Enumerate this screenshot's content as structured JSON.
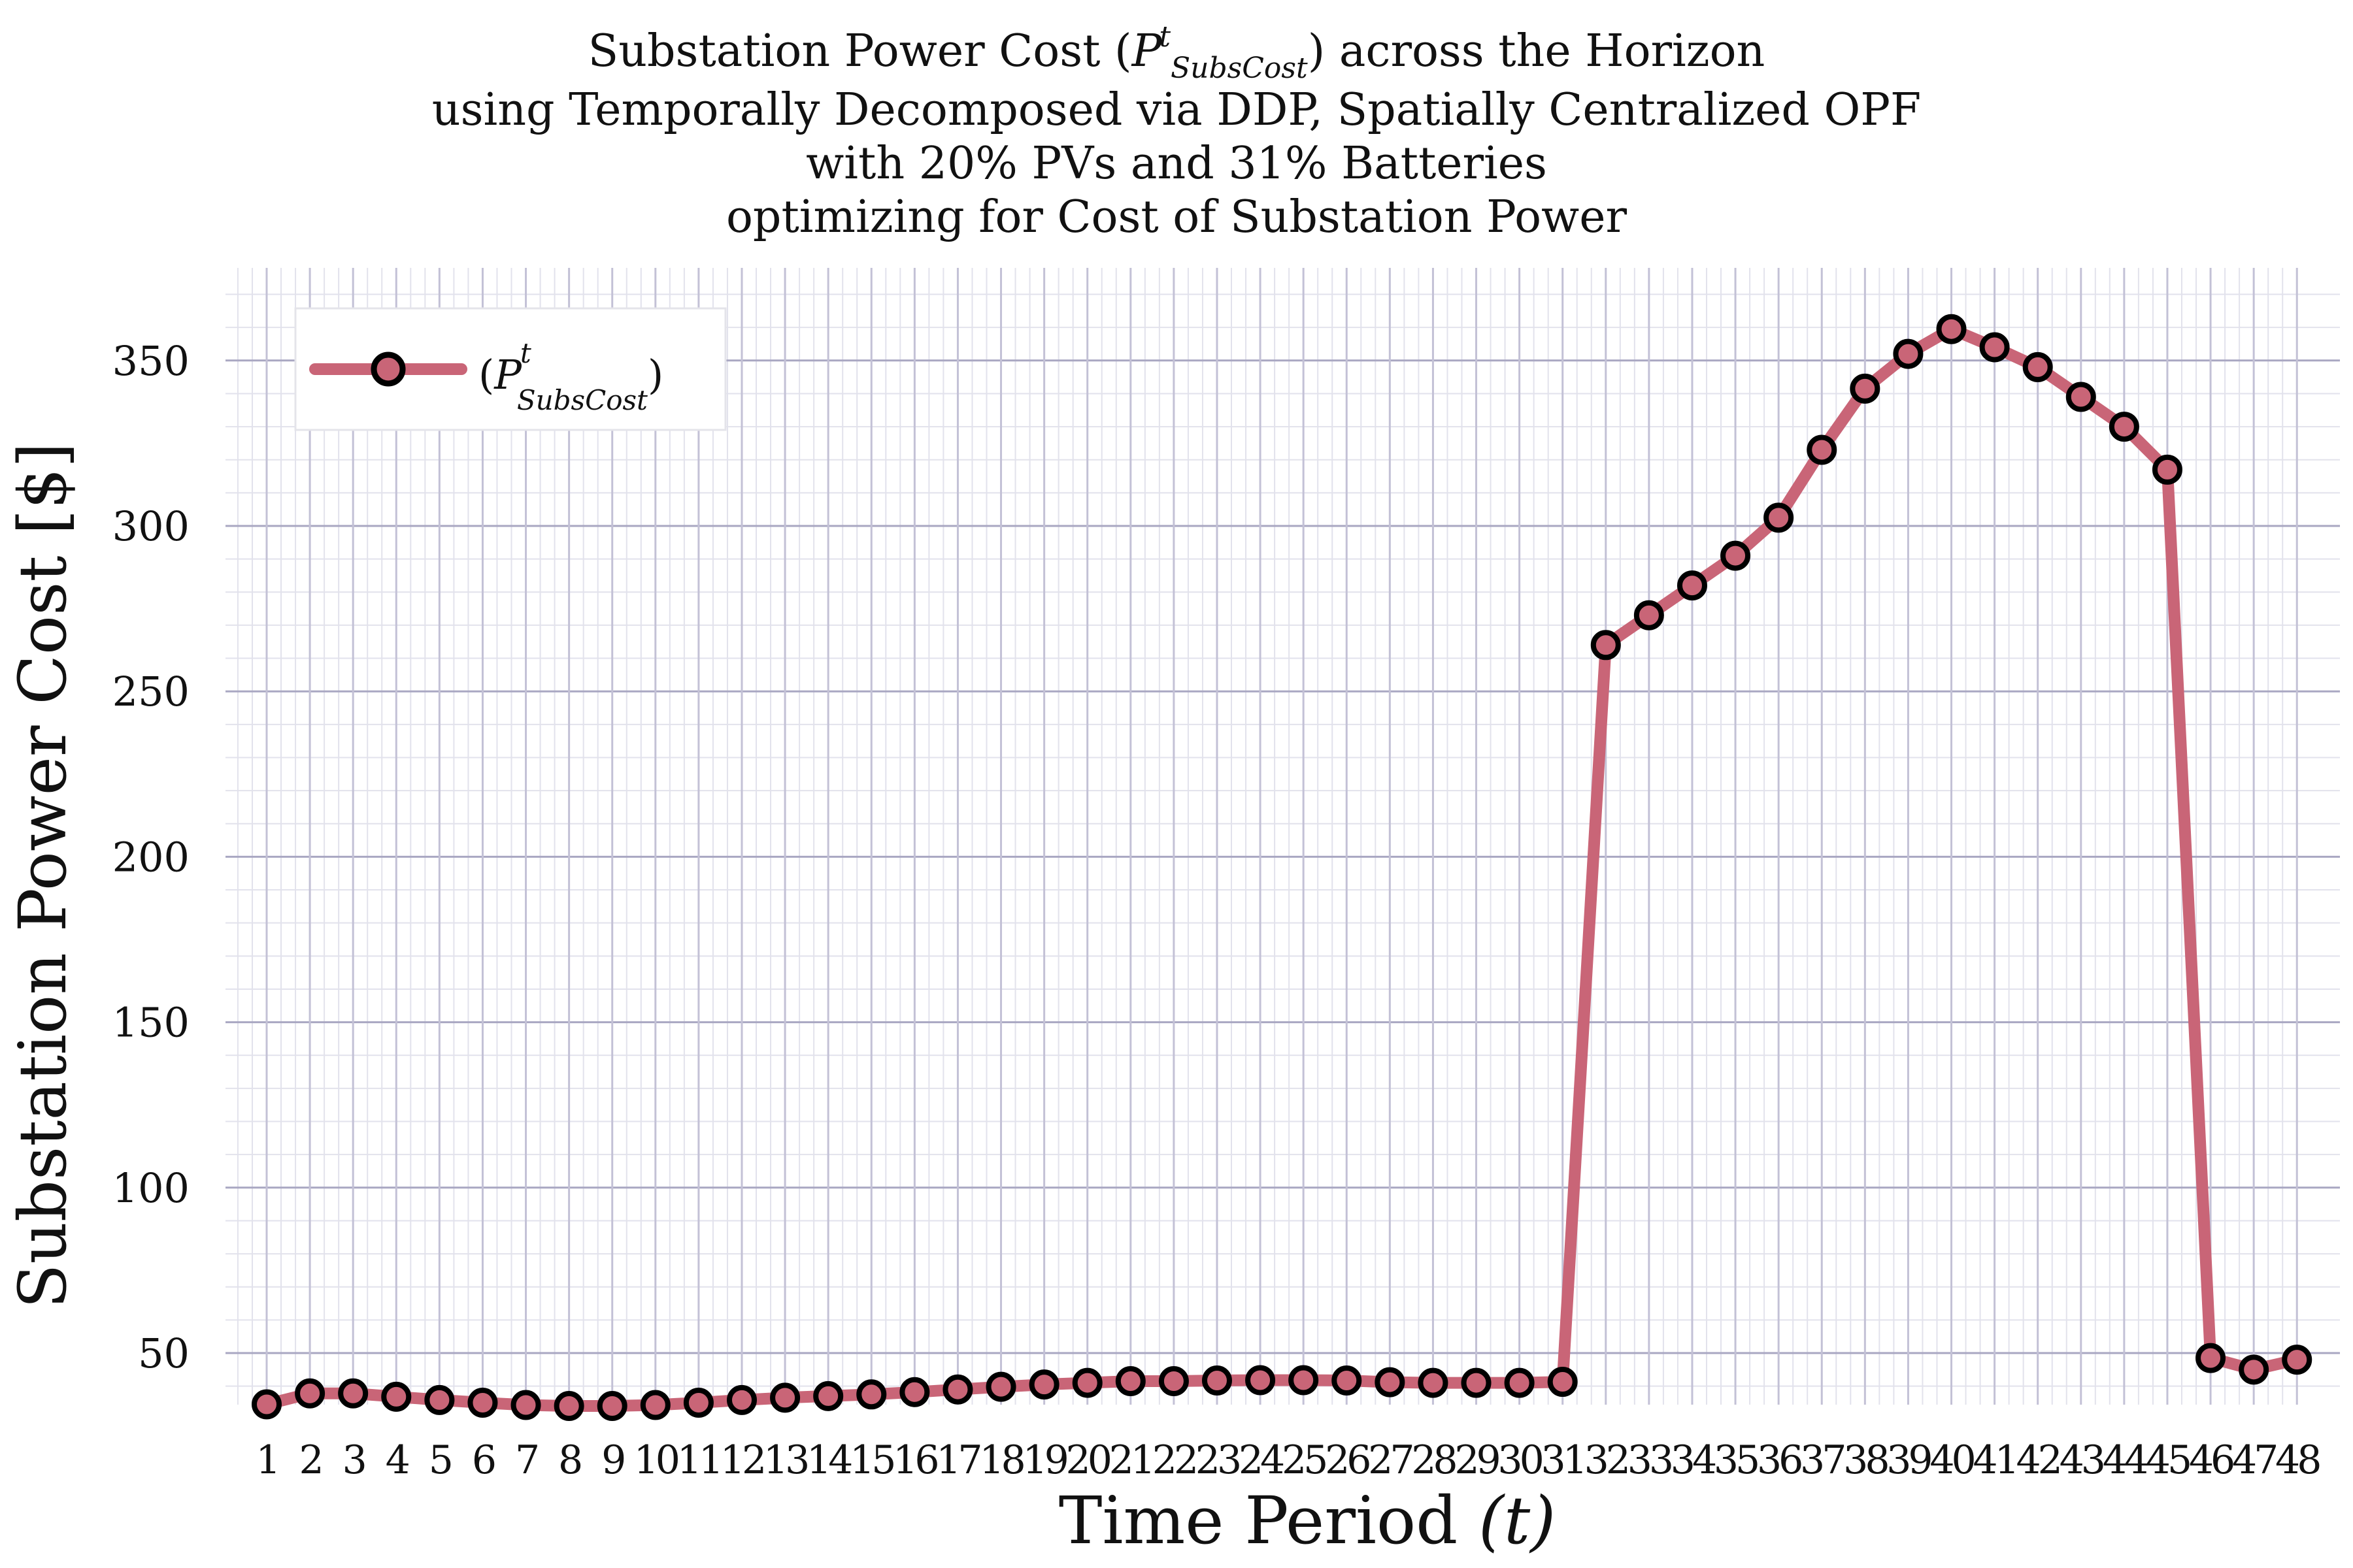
{
  "chart_data": {
    "type": "line",
    "title": {
      "line1_pre": "Substation Power Cost (",
      "line1_sym": "P",
      "line1_sup": "t",
      "line1_sub": "SubsCost",
      "line1_post": ") across the Horizon",
      "line2": "using Temporally Decomposed via DDP, Spatially Centralized OPF",
      "line3": "with 20% PVs and 31% Batteries",
      "line4": "optimizing for Cost of Substation Power"
    },
    "xlabel": "Time Period",
    "xlabel_var": "(t)",
    "ylabel": "Substation Power Cost [$]",
    "xlim": [
      1,
      48
    ],
    "ylim": [
      35,
      375
    ],
    "yticks": [
      50,
      100,
      150,
      200,
      250,
      300,
      350
    ],
    "grid": true,
    "legend_placement": "top-left",
    "series": [
      {
        "name": "(P^t_SubsCost)",
        "legend": {
          "open": "(",
          "sym": "P",
          "sup": "t",
          "sub": "SubsCost",
          "close": ")"
        },
        "color": "#c96577",
        "marker_edge": "#000000",
        "x": [
          1,
          2,
          3,
          4,
          5,
          6,
          7,
          8,
          9,
          10,
          11,
          12,
          13,
          14,
          15,
          16,
          17,
          18,
          19,
          20,
          21,
          22,
          23,
          24,
          25,
          26,
          27,
          28,
          29,
          30,
          31,
          32,
          33,
          34,
          35,
          36,
          37,
          38,
          39,
          40,
          41,
          42,
          43,
          44,
          45,
          46,
          47,
          48
        ],
        "values": [
          34.5,
          37.8,
          37.8,
          36.8,
          35.8,
          35.0,
          34.3,
          34.0,
          34.0,
          34.3,
          35.0,
          35.8,
          36.5,
          37.0,
          37.5,
          38.2,
          39.0,
          39.8,
          40.5,
          41.0,
          41.5,
          41.5,
          41.7,
          41.8,
          41.8,
          41.7,
          41.2,
          41.0,
          41.0,
          41.0,
          41.3,
          264.0,
          273.0,
          282.0,
          291.0,
          302.5,
          323.0,
          341.5,
          352.0,
          359.5,
          354.0,
          348.0,
          339.0,
          330.0,
          317.0,
          48.5,
          45.0,
          48.0
        ]
      }
    ]
  }
}
